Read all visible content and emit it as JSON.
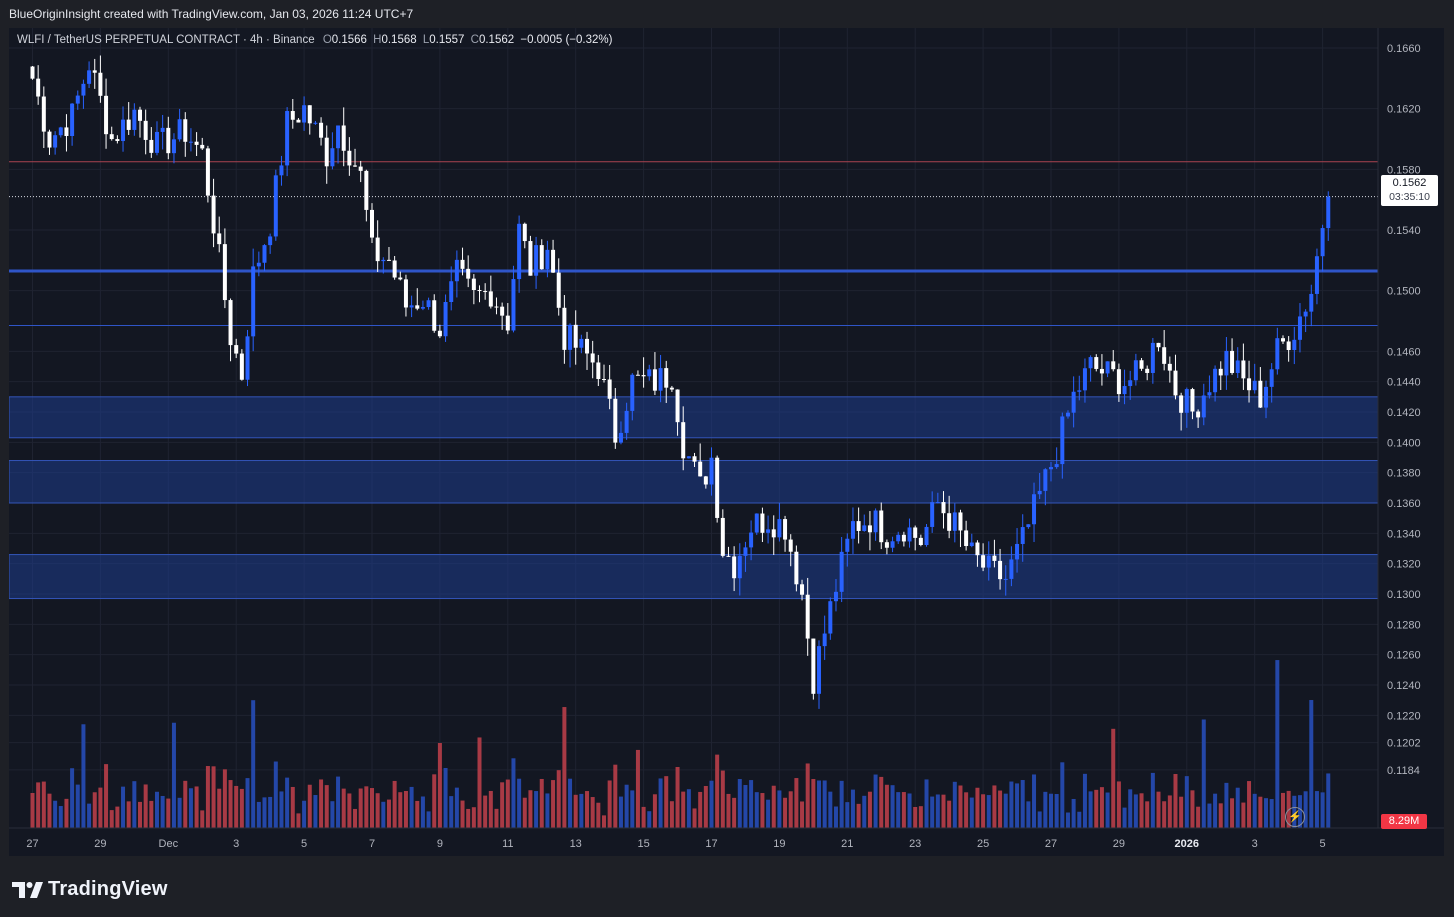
{
  "header": {
    "created_by": "BlueOriginInsight created with TradingView.com, Jan 03, 2026 11:24 UTC+7"
  },
  "legend": {
    "symbol": "WLFI / TetherUS PERPETUAL CONTRACT · 4h · Binance",
    "open_label": "O",
    "open": "0.1566",
    "high_label": "H",
    "high": "0.1568",
    "low_label": "L",
    "low": "0.1557",
    "close_label": "C",
    "close": "0.1562",
    "change": "−0.0005 (−0.32%)"
  },
  "price_badge": {
    "price": "0.1562",
    "countdown": "03:35:10"
  },
  "volume_badge": "8.29M",
  "footer": {
    "brand": "TradingView"
  },
  "colors": {
    "background": "#131722",
    "bull": "#2962ff",
    "bear": "#ffffff",
    "vol_bull": "#2447a8",
    "vol_bear": "#a83a45",
    "zone": "#1e3c8c",
    "resistance_line": "#a94450"
  },
  "chart_data": {
    "type": "candlestick",
    "symbol": "WLFI / TetherUS PERPETUAL CONTRACT",
    "interval": "4h",
    "exchange": "Binance",
    "y_ticks": [
      "0.1660",
      "0.1620",
      "0.1580",
      "0.1540",
      "0.1500",
      "0.1460",
      "0.1440",
      "0.1420",
      "0.1400",
      "0.1380",
      "0.1360",
      "0.1340",
      "0.1320",
      "0.1300",
      "0.1280",
      "0.1260",
      "0.1240",
      "0.1220",
      "0.1202",
      "0.1184"
    ],
    "x_ticks": [
      "27",
      "29",
      "Dec",
      "3",
      "5",
      "7",
      "9",
      "11",
      "13",
      "15",
      "17",
      "19",
      "21",
      "23",
      "25",
      "27",
      "29",
      "2026",
      "3",
      "5"
    ],
    "last_price": 0.1562,
    "horizontal_lines": [
      {
        "price": 0.1585,
        "style": "solid",
        "color": "red"
      },
      {
        "price": 0.1562,
        "style": "dotted",
        "color": "white"
      },
      {
        "price": 0.1513,
        "style": "solid",
        "color": "blue"
      },
      {
        "price": 0.1477,
        "style": "solid",
        "color": "blue"
      }
    ],
    "zones": [
      {
        "from": 0.1403,
        "to": 0.143
      },
      {
        "from": 0.136,
        "to": 0.1388
      },
      {
        "from": 0.1297,
        "to": 0.1326
      }
    ],
    "anchors": [
      [
        "11-26 00:00",
        0.164
      ],
      [
        "11-26 12:00",
        0.16
      ],
      [
        "11-27 04:00",
        0.1615
      ],
      [
        "11-27 16:00",
        0.165
      ],
      [
        "11-28 08:00",
        0.16
      ],
      [
        "11-29 00:00",
        0.1618
      ],
      [
        "11-29 16:00",
        0.1595
      ],
      [
        "11-30 12:00",
        0.1605
      ],
      [
        "12-01 00:00",
        0.159
      ],
      [
        "12-01 08:00",
        0.1545
      ],
      [
        "12-01 20:00",
        0.147
      ],
      [
        "12-02 04:00",
        0.1445
      ],
      [
        "12-02 12:00",
        0.151
      ],
      [
        "12-03 00:00",
        0.1545
      ],
      [
        "12-03 12:00",
        0.161
      ],
      [
        "12-04 00:00",
        0.162
      ],
      [
        "12-04 16:00",
        0.159
      ],
      [
        "12-05 00:00",
        0.161
      ],
      [
        "12-05 16:00",
        0.1575
      ],
      [
        "12-06 00:00",
        0.1525
      ],
      [
        "12-06 12:00",
        0.152
      ],
      [
        "12-07 00:00",
        0.149
      ],
      [
        "12-07 12:00",
        0.1495
      ],
      [
        "12-08 00:00",
        0.1475
      ],
      [
        "12-08 12:00",
        0.151
      ],
      [
        "12-09 00:00",
        0.1495
      ],
      [
        "12-09 12:00",
        0.15
      ],
      [
        "12-10 00:00",
        0.148
      ],
      [
        "12-10 08:00",
        0.154
      ],
      [
        "12-10 16:00",
        0.1515
      ],
      [
        "12-11 04:00",
        0.153
      ],
      [
        "12-11 16:00",
        0.147
      ],
      [
        "12-12 04:00",
        0.146
      ],
      [
        "12-12 16:00",
        0.145
      ],
      [
        "12-13 04:00",
        0.1405
      ],
      [
        "12-13 16:00",
        0.144
      ],
      [
        "12-14 08:00",
        0.144
      ],
      [
        "12-14 20:00",
        0.1445
      ],
      [
        "12-15 04:00",
        0.14
      ],
      [
        "12-15 16:00",
        0.137
      ],
      [
        "12-16 00:00",
        0.139
      ],
      [
        "12-16 08:00",
        0.133
      ],
      [
        "12-16 16:00",
        0.132
      ],
      [
        "12-17 04:00",
        0.1345
      ],
      [
        "12-17 16:00",
        0.135
      ],
      [
        "12-18 04:00",
        0.1345
      ],
      [
        "12-18 16:00",
        0.13
      ],
      [
        "12-19 00:00",
        0.1245
      ],
      [
        "12-19 08:00",
        0.1275
      ],
      [
        "12-19 16:00",
        0.1305
      ],
      [
        "12-20 04:00",
        0.1345
      ],
      [
        "12-20 16:00",
        0.135
      ],
      [
        "12-21 04:00",
        0.134
      ],
      [
        "12-21 16:00",
        0.1345
      ],
      [
        "12-22 04:00",
        0.1335
      ],
      [
        "12-22 16:00",
        0.136
      ],
      [
        "12-23 04:00",
        0.1345
      ],
      [
        "12-23 16:00",
        0.1325
      ],
      [
        "12-24 04:00",
        0.1315
      ],
      [
        "12-24 16:00",
        0.131
      ],
      [
        "12-25 04:00",
        0.1335
      ],
      [
        "12-25 16:00",
        0.1365
      ],
      [
        "12-26 04:00",
        0.1395
      ],
      [
        "12-26 16:00",
        0.143
      ],
      [
        "12-27 04:00",
        0.145
      ],
      [
        "12-27 16:00",
        0.1445
      ],
      [
        "12-28 04:00",
        0.144
      ],
      [
        "12-28 16:00",
        0.1445
      ],
      [
        "12-29 04:00",
        0.147
      ],
      [
        "12-29 16:00",
        0.1435
      ],
      [
        "12-30 04:00",
        0.142
      ],
      [
        "12-30 16:00",
        0.144
      ],
      [
        "12-31 04:00",
        0.1455
      ],
      [
        "12-31 16:00",
        0.144
      ],
      [
        "01-01 04:00",
        0.143
      ],
      [
        "01-01 16:00",
        0.146
      ],
      [
        "01-02 04:00",
        0.1475
      ],
      [
        "01-02 16:00",
        0.15
      ],
      [
        "01-03 00:00",
        0.1545
      ],
      [
        "01-03 04:00",
        0.1562
      ]
    ]
  }
}
